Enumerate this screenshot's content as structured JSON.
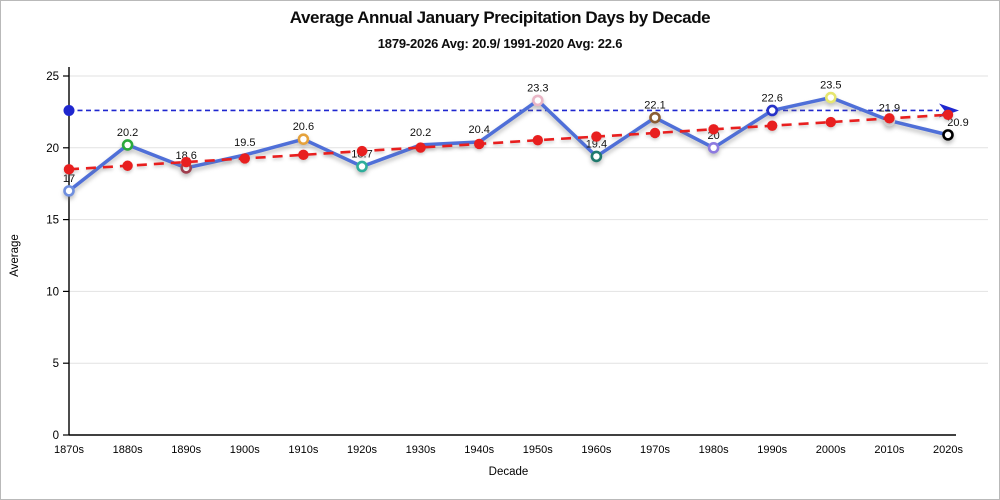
{
  "window": {
    "background": "#ffffff",
    "border_color": "#b9b9b9"
  },
  "chart_data": {
    "type": "line",
    "title": "Average Annual January Precipitation Days by Decade",
    "subtitle": "1879-2026 Avg: 20.9/ 1991-2020 Avg: 22.6",
    "xlabel": "Decade",
    "ylabel": "Average",
    "ylim": [
      0,
      25
    ],
    "yticks": [
      0,
      5,
      10,
      15,
      20,
      25
    ],
    "grid": "horizontal",
    "grid_color": "#e2e2e2",
    "axis_color": "#000000",
    "legend": "none",
    "categories": [
      "1870s",
      "1880s",
      "1890s",
      "1900s",
      "1910s",
      "1920s",
      "1930s",
      "1940s",
      "1950s",
      "1960s",
      "1970s",
      "1980s",
      "1990s",
      "2000s",
      "2010s",
      "2020s"
    ],
    "series": [
      {
        "name": "decade-average",
        "kind": "line",
        "line_color": "#4f6fd8",
        "line_style": "solid",
        "values": [
          17,
          20.2,
          18.6,
          19.5,
          20.6,
          18.7,
          20.2,
          20.4,
          23.3,
          19.4,
          22.1,
          20,
          22.6,
          23.5,
          21.9,
          20.9
        ],
        "data_labels": [
          "17",
          "20.2",
          "18.6",
          "19.5",
          "20.6",
          "18.7",
          "20.2",
          "20.4",
          "23.3",
          "19.4",
          "22.1",
          "20",
          "22.6",
          "23.5",
          "21.9",
          "20.9"
        ],
        "marker_fill": "#ffffff",
        "marker_colors": [
          "#6f8fdf",
          "#2aa93c",
          "#a03c4c",
          null,
          "#e5a23c",
          "#2fae9b",
          null,
          null,
          "#eab6c6",
          "#1f7a6d",
          "#8b5e34",
          "#8d7ae0",
          "#2632c8",
          "#e6e66e",
          "#e0e0e0",
          "#000000"
        ]
      },
      {
        "name": "linear-trend",
        "kind": "line",
        "line_color": "#e81f1f",
        "line_style": "dashed",
        "marker": "filled-circle",
        "values": [
          18.5,
          18.75,
          19.01,
          19.26,
          19.51,
          19.77,
          20.02,
          20.27,
          20.53,
          20.78,
          21.03,
          21.29,
          21.54,
          21.79,
          22.05,
          22.3
        ]
      },
      {
        "name": "reference-1991-2020-avg",
        "kind": "reference-line",
        "line_color": "#1f27cf",
        "line_style": "dashed",
        "value": 22.6,
        "start_marker": "filled-circle",
        "end_marker": "arrow-right"
      }
    ]
  }
}
